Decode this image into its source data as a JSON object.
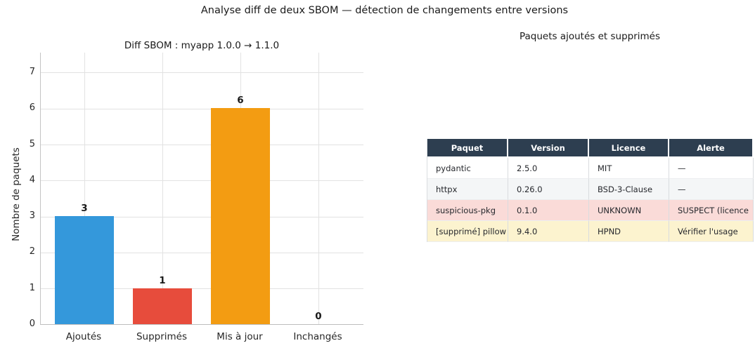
{
  "figure": {
    "suptitle": "Analyse diff de deux SBOM — détection de changements entre versions"
  },
  "chart": {
    "title": "Diff SBOM : myapp 1.0.0 → 1.1.0",
    "ylabel": "Nombre de paquets",
    "categories": [
      "Ajoutés",
      "Supprimés",
      "Mis à jour",
      "Inchangés"
    ],
    "values": [
      3,
      1,
      6,
      0
    ],
    "bar_colors": [
      "#3498db",
      "#e74c3c",
      "#f39c12",
      "#f39c12"
    ],
    "yticks": [
      0,
      1,
      2,
      3,
      4,
      5,
      6,
      7
    ]
  },
  "chart_data": [
    {
      "type": "bar",
      "title": "Diff SBOM : myapp 1.0.0 → 1.1.0",
      "xlabel": "",
      "ylabel": "Nombre de paquets",
      "categories": [
        "Ajoutés",
        "Supprimés",
        "Mis à jour",
        "Inchangés"
      ],
      "values": [
        3,
        1,
        6,
        0
      ],
      "bar_colors": [
        "#3498db",
        "#e74c3c",
        "#f39c12",
        "#f39c12"
      ],
      "data_labels": [
        "3",
        "1",
        "6",
        "0"
      ],
      "ylim": [
        0,
        7.56
      ],
      "yticks": [
        0,
        1,
        2,
        3,
        4,
        5,
        6,
        7
      ],
      "grid": true,
      "legend": false
    },
    {
      "type": "table",
      "title": "Paquets ajoutés et supprimés",
      "columns": [
        "Paquet",
        "Version",
        "Licence",
        "Alerte"
      ],
      "rows": [
        [
          "pydantic",
          "2.5.0",
          "MIT",
          "—"
        ],
        [
          "httpx",
          "0.26.0",
          "BSD-3-Clause",
          "—"
        ],
        [
          "suspicious-pkg",
          "0.1.0",
          "UNKNOWN",
          "SUSPECT (licence"
        ],
        [
          "[supprimé] pillow",
          "9.4.0",
          "HPND",
          "Vérifier l'usage"
        ]
      ],
      "row_colors": [
        "#ffffff",
        "#f4f6f7",
        "#fadbd8",
        "#fcf3cf"
      ],
      "header_bg": "#2d3e50",
      "header_text_color": "#ffffff"
    }
  ],
  "table": {
    "title": "Paquets ajoutés et supprimés",
    "headers": [
      "Paquet",
      "Version",
      "Licence",
      "Alerte"
    ],
    "rows": [
      {
        "bg": "#ffffff",
        "cells": [
          "pydantic",
          "2.5.0",
          "MIT",
          "—"
        ]
      },
      {
        "bg": "#f4f6f7",
        "cells": [
          "httpx",
          "0.26.0",
          "BSD-3-Clause",
          "—"
        ]
      },
      {
        "bg": "#fadbd8",
        "cells": [
          "suspicious-pkg",
          "0.1.0",
          "UNKNOWN",
          "SUSPECT (licence"
        ]
      },
      {
        "bg": "#fcf3cf",
        "cells": [
          "[supprimé] pillow",
          "9.4.0",
          "HPND",
          "Vérifier l'usage"
        ]
      }
    ],
    "header_bg": "#2d3e50",
    "header_text_color": "#ffffff"
  }
}
